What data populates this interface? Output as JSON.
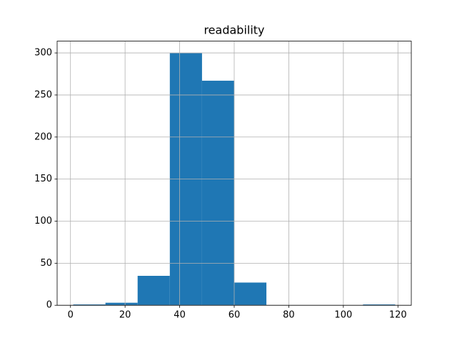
{
  "chart_data": {
    "type": "histogram",
    "title": "readability",
    "bins": [
      1,
      12.8,
      24.6,
      36.4,
      48.2,
      60,
      71.8,
      83.6,
      95.4,
      107.2,
      119
    ],
    "values": [
      1,
      3,
      35,
      300,
      267,
      27,
      0,
      0,
      0,
      1
    ],
    "color": "#1f77b4",
    "xlim": [
      -4.9,
      124.9
    ],
    "xticks": [
      0,
      20,
      40,
      60,
      80,
      100,
      120
    ],
    "ylim": [
      0,
      314
    ],
    "yticks": [
      0,
      50,
      100,
      150,
      200,
      250,
      300
    ],
    "grid": true
  }
}
